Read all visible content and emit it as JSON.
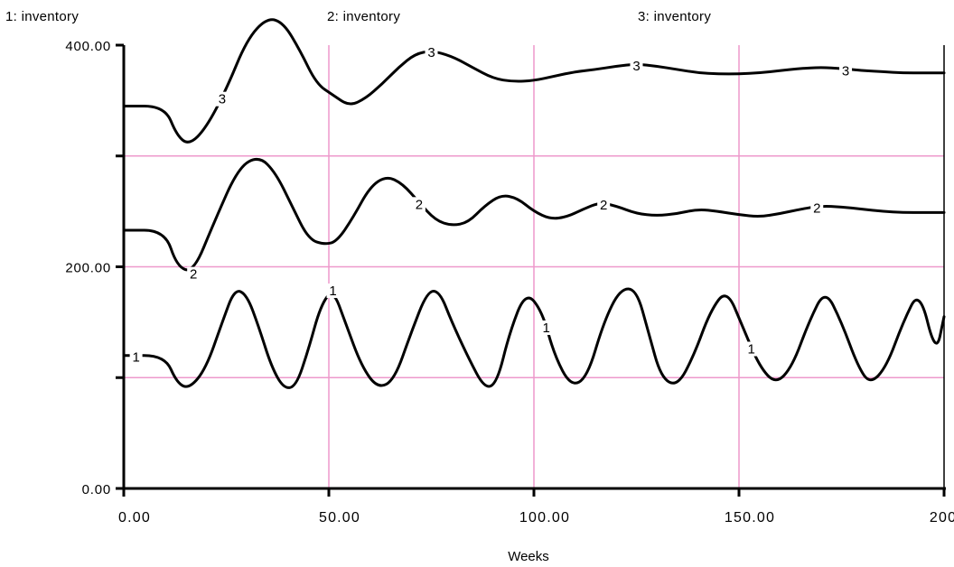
{
  "chart_data": {
    "type": "line",
    "title": "",
    "xlabel": "Weeks",
    "ylabel": "",
    "xlim": [
      0,
      200
    ],
    "ylim": [
      0,
      400
    ],
    "x_ticks": [
      "0.00",
      "50.00",
      "100.00",
      "150.00",
      "200.00"
    ],
    "y_ticks": [
      "0.00",
      "200.00",
      "400.00"
    ],
    "grid": true,
    "grid_color": "#ee99cc",
    "line_color": "#000000",
    "series": [
      {
        "name": "1: inventory",
        "marker": "1",
        "x": [
          0,
          10,
          13,
          16,
          20,
          24,
          27,
          30,
          33,
          36,
          39,
          42,
          45,
          48,
          51,
          54,
          58,
          62,
          66,
          70,
          74,
          77,
          80,
          84,
          88,
          91,
          94,
          98,
          102,
          105,
          109,
          113,
          117,
          121,
          125,
          128,
          131,
          135,
          139,
          143,
          147,
          151,
          155,
          159,
          163,
          167,
          171,
          175,
          179,
          182,
          186,
          190,
          194,
          198,
          200
        ],
        "y": [
          120,
          120,
          95,
          90,
          108,
          150,
          180,
          175,
          145,
          110,
          90,
          92,
          125,
          165,
          180,
          150,
          110,
          90,
          98,
          140,
          178,
          178,
          150,
          118,
          90,
          95,
          140,
          178,
          160,
          120,
          92,
          100,
          150,
          180,
          180,
          140,
          100,
          92,
          120,
          160,
          180,
          145,
          110,
          94,
          110,
          150,
          180,
          150,
          110,
          94,
          110,
          150,
          180,
          120,
          155
        ]
      },
      {
        "name": "2: inventory",
        "marker": "2",
        "x": [
          0,
          10,
          13,
          17,
          22,
          28,
          33,
          37,
          41,
          45,
          49,
          52,
          56,
          60,
          64,
          68,
          72,
          76,
          80,
          84,
          88,
          92,
          96,
          100,
          104,
          108,
          112,
          116,
          120,
          125,
          130,
          135,
          140,
          145,
          150,
          155,
          160,
          165,
          170,
          175,
          180,
          185,
          190,
          195,
          200
        ],
        "y": [
          233,
          233,
          200,
          195,
          240,
          290,
          300,
          285,
          255,
          225,
          220,
          223,
          245,
          272,
          282,
          275,
          258,
          242,
          237,
          240,
          255,
          265,
          262,
          250,
          243,
          245,
          252,
          258,
          255,
          248,
          246,
          248,
          252,
          250,
          247,
          245,
          248,
          252,
          255,
          254,
          252,
          250,
          249,
          249,
          249
        ]
      },
      {
        "name": "3: inventory",
        "marker": "3",
        "x": [
          0,
          10,
          13,
          16,
          20,
          25,
          30,
          35,
          39,
          43,
          47,
          51,
          55,
          59,
          63,
          67,
          71,
          75,
          80,
          85,
          90,
          95,
          100,
          105,
          110,
          115,
          120,
          125,
          130,
          135,
          140,
          145,
          150,
          155,
          160,
          165,
          170,
          175,
          180,
          185,
          190,
          195,
          200
        ],
        "y": [
          345,
          345,
          318,
          310,
          325,
          360,
          405,
          425,
          420,
          395,
          365,
          355,
          345,
          352,
          365,
          380,
          392,
          395,
          390,
          380,
          370,
          367,
          368,
          372,
          376,
          378,
          381,
          383,
          381,
          378,
          375,
          374,
          374,
          375,
          377,
          379,
          380,
          379,
          377,
          376,
          375,
          375,
          375
        ]
      }
    ]
  }
}
